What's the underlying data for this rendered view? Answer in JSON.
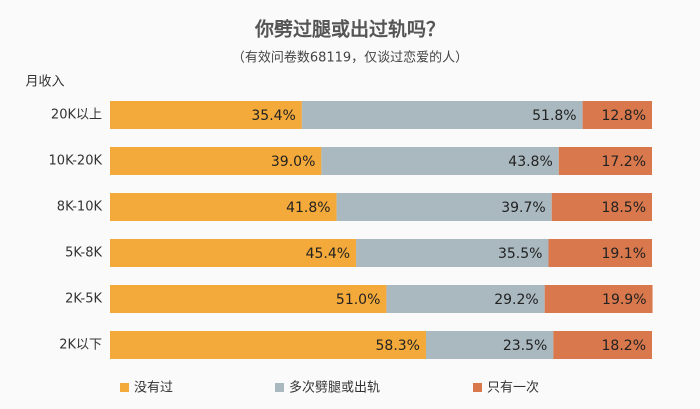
{
  "chart_data": {
    "type": "stacked_bar_horizontal",
    "title": "你劈过腿或出过轨吗？",
    "subtitle": "（有效问卷数68119，仅谈过恋爱的人）",
    "y_axis_label": "月收入",
    "categories": [
      "20K以上",
      "10K-20K",
      "8K-10K",
      "5K-8K",
      "2K-5K",
      "2K以下"
    ],
    "xlim": [
      0,
      100
    ],
    "legend": "bottom",
    "series": [
      {
        "name": "没有过",
        "color": "#f4aa3a",
        "values": [
          35.4,
          39.0,
          41.8,
          45.4,
          51.0,
          58.3
        ],
        "value_labels": [
          "35.4%",
          "39.0%",
          "41.8%",
          "45.4%",
          "51.0%",
          "58.3%"
        ]
      },
      {
        "name": "多次劈腿或出轨",
        "color": "#aab9c0",
        "values": [
          51.8,
          43.8,
          39.7,
          35.5,
          29.2,
          23.5
        ],
        "value_labels": [
          "51.8%",
          "43.8%",
          "39.7%",
          "35.5%",
          "29.2%",
          "23.5%"
        ]
      },
      {
        "name": "只有一次",
        "color": "#d9784c",
        "values": [
          12.8,
          17.2,
          18.5,
          19.1,
          19.9,
          18.2
        ],
        "value_labels": [
          "12.8%",
          "17.2%",
          "18.5%",
          "19.1%",
          "19.9%",
          "18.2%"
        ]
      }
    ]
  }
}
